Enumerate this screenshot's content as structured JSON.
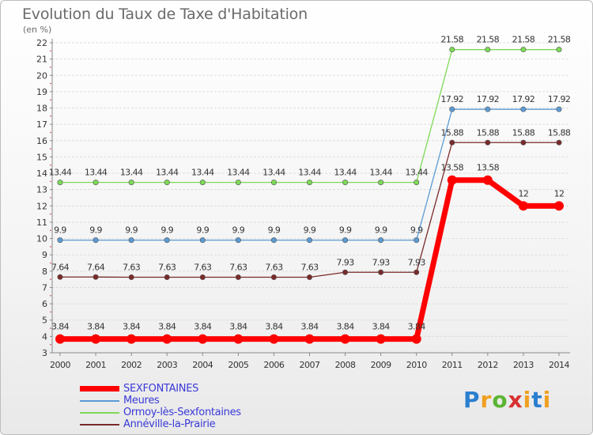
{
  "chart_data": {
    "type": "line",
    "title": "Evolution du Taux de Taxe d'Habitation",
    "ylabel": "(en %)",
    "ylim": [
      3,
      22
    ],
    "y_ticks": [
      3,
      4,
      5,
      6,
      7,
      8,
      9,
      10,
      11,
      12,
      13,
      14,
      15,
      16,
      17,
      18,
      19,
      20,
      21,
      22
    ],
    "x": [
      2000,
      2001,
      2002,
      2003,
      2004,
      2005,
      2006,
      2007,
      2008,
      2009,
      2010,
      2011,
      2012,
      2013,
      2014
    ],
    "grid": "horizontal",
    "legend_position": "bottom-left",
    "series": [
      {
        "name": "SEXFONTAINES",
        "color": "#ff0000",
        "values": [
          3.84,
          3.84,
          3.84,
          3.84,
          3.84,
          3.84,
          3.84,
          3.84,
          3.84,
          3.84,
          3.84,
          13.58,
          13.58,
          12,
          12
        ],
        "labels": [
          "3.84",
          "3.84",
          "3.84",
          "3.84",
          "3.84",
          "3.84",
          "3.84",
          "3.84",
          "3.84",
          "3.84",
          "3.84",
          "13.58",
          "13.58",
          "12",
          "12"
        ]
      },
      {
        "name": "Meures",
        "color": "#5b9bd5",
        "values": [
          9.9,
          9.9,
          9.9,
          9.9,
          9.9,
          9.9,
          9.9,
          9.9,
          9.9,
          9.9,
          9.9,
          17.92,
          17.92,
          17.92,
          17.92
        ],
        "labels": [
          "9.9",
          "9.9",
          "9.9",
          "9.9",
          "9.9",
          "9.9",
          "9.9",
          "9.9",
          "9.9",
          "9.9",
          "9.9",
          "17.92",
          "17.92",
          "17.92",
          "17.92"
        ]
      },
      {
        "name": "Ormoy-lès-Sexfontaines",
        "color": "#7ed957",
        "values": [
          13.44,
          13.44,
          13.44,
          13.44,
          13.44,
          13.44,
          13.44,
          13.44,
          13.44,
          13.44,
          13.44,
          21.58,
          21.58,
          21.58,
          21.58
        ],
        "labels": [
          "13.44",
          "13.44",
          "13.44",
          "13.44",
          "13.44",
          "13.44",
          "13.44",
          "13.44",
          "13.44",
          "13.44",
          "13.44",
          "21.58",
          "21.58",
          "21.58",
          "21.58"
        ]
      },
      {
        "name": "Annéville-la-Prairie",
        "color": "#7a2a2a",
        "values": [
          7.64,
          7.64,
          7.63,
          7.63,
          7.63,
          7.63,
          7.63,
          7.63,
          7.93,
          7.93,
          7.93,
          15.88,
          15.88,
          15.88,
          15.88
        ],
        "labels": [
          "7.64",
          "7.64",
          "7.63",
          "7.63",
          "7.63",
          "7.63",
          "7.63",
          "7.63",
          "7.93",
          "7.93",
          "7.93",
          "15.88",
          "15.88",
          "15.88",
          "15.88"
        ]
      }
    ]
  },
  "logo": {
    "p": "P",
    "r": "r",
    "o": "o",
    "x": "x",
    "i": "i",
    "t": "t",
    "i2": "i"
  }
}
